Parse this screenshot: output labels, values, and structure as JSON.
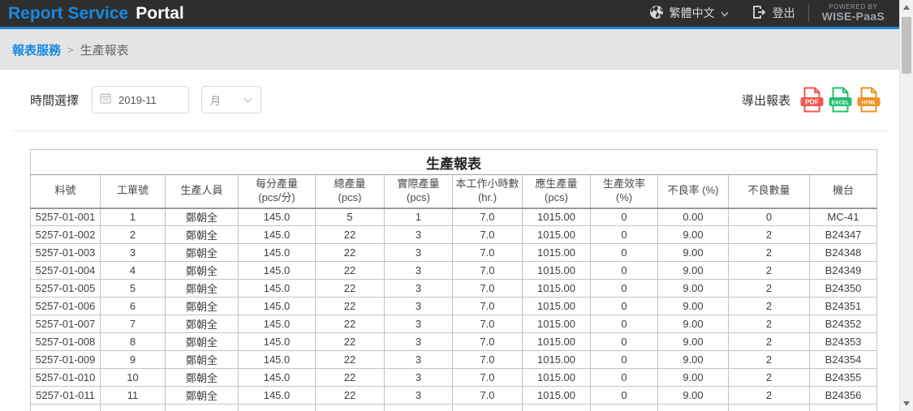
{
  "colors": {
    "accent_blue": "#1789e0",
    "topbar_bg": "#2e2e2e",
    "breadcrumb_bg": "#e4e4e4"
  },
  "header": {
    "brand_primary": "Report Service",
    "brand_secondary": "Portal",
    "language": "繁體中文",
    "logout_label": "登出",
    "powered_by_line1": "POWERED BY",
    "powered_by_line2": "WISE-PaaS"
  },
  "breadcrumb": {
    "items": [
      "報表服務",
      "生產報表"
    ],
    "separator": ">"
  },
  "filters": {
    "time_label": "時間選擇",
    "date_value": "2019-11",
    "period_value": "月",
    "export_label": "導出報表",
    "export_buttons": [
      {
        "label": "PDF",
        "color": "#f0564e"
      },
      {
        "label": "EXCEL",
        "color": "#26bf71"
      },
      {
        "label": "HTML",
        "color": "#ef9226"
      }
    ]
  },
  "table": {
    "title": "生產報表",
    "columns": [
      {
        "line1": "料號",
        "line2": ""
      },
      {
        "line1": "工單號",
        "line2": ""
      },
      {
        "line1": "生產人員",
        "line2": ""
      },
      {
        "line1": "每分產量",
        "line2": "(pcs/分)"
      },
      {
        "line1": "總產量",
        "line2": "(pcs)"
      },
      {
        "line1": "實際產量",
        "line2": "(pcs)"
      },
      {
        "line1": "本工作小時數",
        "line2": "(hr.)"
      },
      {
        "line1": "應生產量",
        "line2": "(pcs)"
      },
      {
        "line1": "生產效率",
        "line2": "(%)"
      },
      {
        "line1": "不良率 (%)",
        "line2": ""
      },
      {
        "line1": "不良數量",
        "line2": ""
      },
      {
        "line1": "機台",
        "line2": ""
      }
    ],
    "rows": [
      [
        "5257-01-001",
        "1",
        "鄭朝全",
        "145.0",
        "5",
        "1",
        "7.0",
        "1015.00",
        "0",
        "0.00",
        "0",
        "MC-41"
      ],
      [
        "5257-01-002",
        "2",
        "鄭朝全",
        "145.0",
        "22",
        "3",
        "7.0",
        "1015.00",
        "0",
        "9.00",
        "2",
        "B24347"
      ],
      [
        "5257-01-003",
        "3",
        "鄭朝全",
        "145.0",
        "22",
        "3",
        "7.0",
        "1015.00",
        "0",
        "9.00",
        "2",
        "B24348"
      ],
      [
        "5257-01-004",
        "4",
        "鄭朝全",
        "145.0",
        "22",
        "3",
        "7.0",
        "1015.00",
        "0",
        "9.00",
        "2",
        "B24349"
      ],
      [
        "5257-01-005",
        "5",
        "鄭朝全",
        "145.0",
        "22",
        "3",
        "7.0",
        "1015.00",
        "0",
        "9.00",
        "2",
        "B24350"
      ],
      [
        "5257-01-006",
        "6",
        "鄭朝全",
        "145.0",
        "22",
        "3",
        "7.0",
        "1015.00",
        "0",
        "9.00",
        "2",
        "B24351"
      ],
      [
        "5257-01-007",
        "7",
        "鄭朝全",
        "145.0",
        "22",
        "3",
        "7.0",
        "1015.00",
        "0",
        "9.00",
        "2",
        "B24352"
      ],
      [
        "5257-01-008",
        "8",
        "鄭朝全",
        "145.0",
        "22",
        "3",
        "7.0",
        "1015.00",
        "0",
        "9.00",
        "2",
        "B24353"
      ],
      [
        "5257-01-009",
        "9",
        "鄭朝全",
        "145.0",
        "22",
        "3",
        "7.0",
        "1015.00",
        "0",
        "9.00",
        "2",
        "B24354"
      ],
      [
        "5257-01-010",
        "10",
        "鄭朝全",
        "145.0",
        "22",
        "3",
        "7.0",
        "1015.00",
        "0",
        "9.00",
        "2",
        "B24355"
      ],
      [
        "5257-01-011",
        "11",
        "鄭朝全",
        "145.0",
        "22",
        "3",
        "7.0",
        "1015.00",
        "0",
        "9.00",
        "2",
        "B24356"
      ]
    ]
  }
}
